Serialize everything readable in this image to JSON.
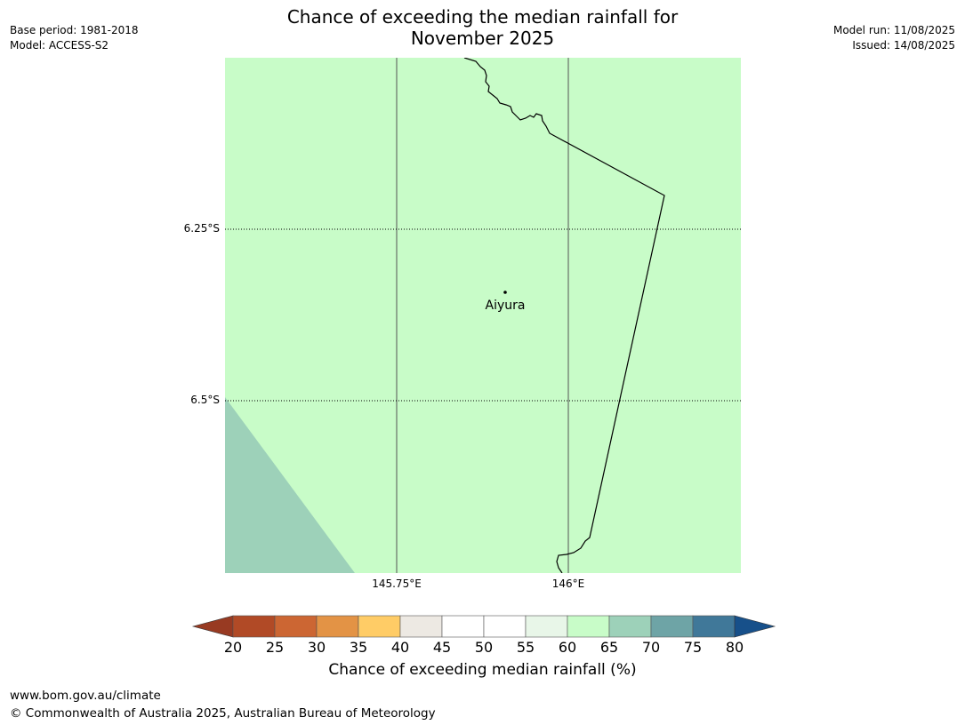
{
  "title": {
    "line1": "Chance of exceeding the median rainfall for",
    "line2": "November 2025"
  },
  "meta_left": {
    "base_period": "Base period: 1981-2018",
    "model": "Model: ACCESS-S2"
  },
  "meta_right": {
    "model_run": "Model run: 11/08/2025",
    "issued": "Issued: 14/08/2025"
  },
  "map": {
    "lat_ticks": [
      "6.25°S",
      "6.5°S"
    ],
    "lon_ticks": [
      "145.75°E",
      "146°E"
    ],
    "place": {
      "name": "Aiyura"
    },
    "colors": {
      "background_class": "#c8fcc8",
      "corner_class": "#9dd1b9",
      "coast": "#000000",
      "grid": "#555555"
    }
  },
  "colorbar": {
    "ticks": [
      "20",
      "25",
      "30",
      "35",
      "40",
      "45",
      "50",
      "55",
      "60",
      "65",
      "70",
      "75",
      "80"
    ],
    "colors": {
      "under": "#983a22",
      "bins": [
        "#b14a26",
        "#cc6633",
        "#e39345",
        "#ffcc66",
        "#ede9e3",
        "#ffffff",
        "#ffffff",
        "#e8f6e8",
        "#c8fcc8",
        "#9dd1b9",
        "#6ea4a6",
        "#407899"
      ],
      "over": "#17508a"
    },
    "label": "Chance of exceeding median rainfall (%)"
  },
  "footer": {
    "url": "www.bom.gov.au/climate",
    "copyright": "© Commonwealth of Australia 2025, Australian Bureau of Meteorology"
  }
}
